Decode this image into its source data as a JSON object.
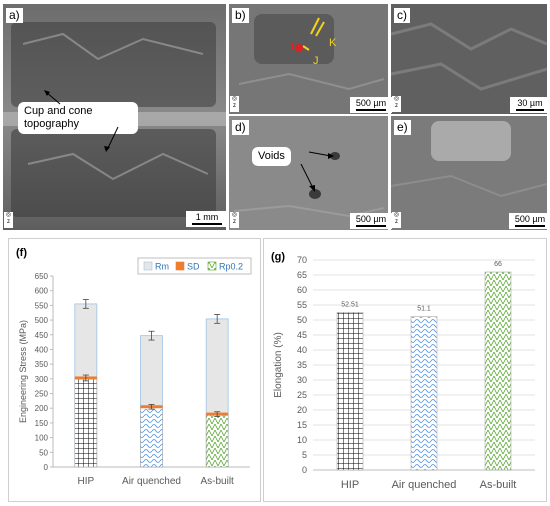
{
  "micrographs": {
    "a": {
      "label": "a)",
      "annotation_line1": "Cup and cone",
      "annotation_line2": "topography",
      "scale": "1 mm"
    },
    "b": {
      "label": "b)",
      "scale": "500 µm",
      "markers": [
        "I",
        "J",
        "K"
      ]
    },
    "c": {
      "label": "c)",
      "scale": "30 µm"
    },
    "d": {
      "label": "d)",
      "annotation": "Voids",
      "scale": "500 µm"
    },
    "e": {
      "label": "e)",
      "scale": "500 µm"
    },
    "z_icon": "z"
  },
  "chart_data": [
    {
      "panel": "(f)",
      "type": "bar",
      "categories": [
        "HIP",
        "Air quenched",
        "As-built"
      ],
      "ylabel": "Engineering Stress (MPa)",
      "ylim": [
        0,
        650
      ],
      "yticks": [
        0,
        50,
        100,
        150,
        200,
        250,
        300,
        350,
        400,
        450,
        500,
        550,
        600,
        650
      ],
      "legend": [
        "Rm",
        "SD",
        "Rp0.2"
      ],
      "legend_position": "top-right",
      "series": [
        {
          "name": "Rm",
          "values": [
            555,
            447,
            504
          ],
          "error": [
            15,
            15,
            15
          ],
          "color": "#e6e6e6"
        },
        {
          "name": "Rp0.2",
          "values": [
            303,
            205,
            180
          ],
          "error": [
            10,
            8,
            8
          ]
        }
      ],
      "sd_color": "#ed7d31"
    },
    {
      "panel": "(g)",
      "type": "bar",
      "categories": [
        "HIP",
        "Air quenched",
        "As-built"
      ],
      "ylabel": "Elongation (%)",
      "ylim": [
        0,
        70
      ],
      "yticks": [
        0,
        5,
        10,
        15,
        20,
        25,
        30,
        35,
        40,
        45,
        50,
        55,
        60,
        65,
        70
      ],
      "series": [
        {
          "values": [
            52.51,
            51.1,
            66
          ]
        }
      ],
      "data_labels": [
        "52.51",
        "51.1",
        "66"
      ],
      "grid": true
    }
  ]
}
